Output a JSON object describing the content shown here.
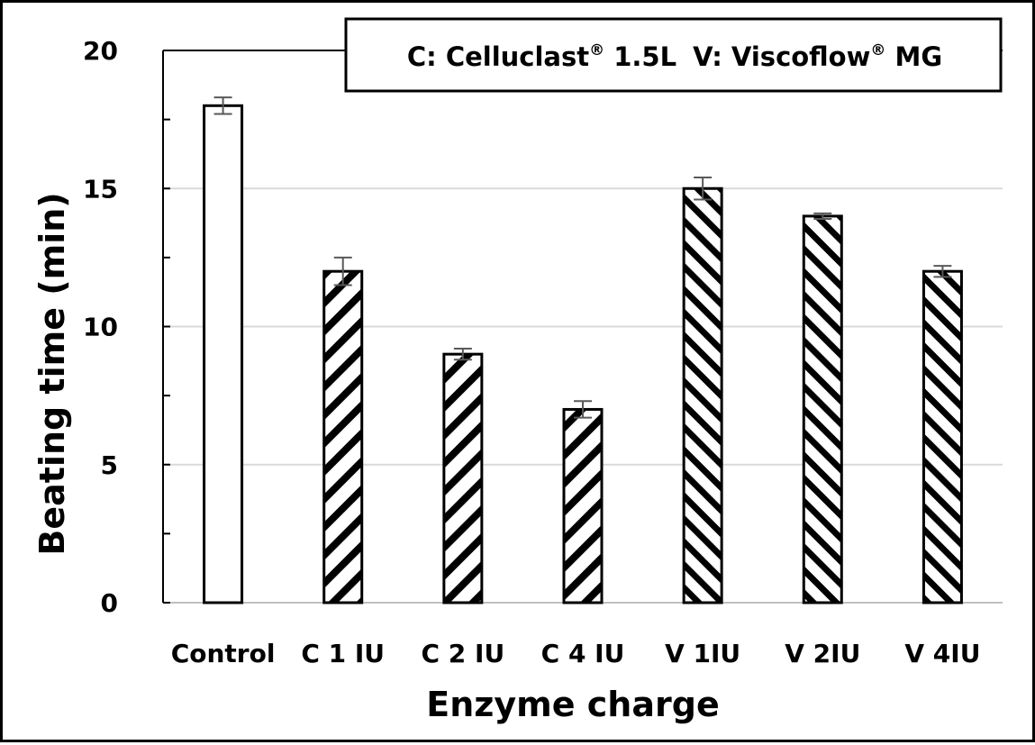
{
  "chart_data": {
    "type": "bar",
    "title": "",
    "xlabel": "Enzyme charge",
    "ylabel": "Beating time (min)",
    "ylim": [
      0,
      20
    ],
    "yticks": [
      0,
      5,
      10,
      15,
      20
    ],
    "yticks_minor": [
      2.5,
      7.5,
      12.5,
      17.5
    ],
    "grid": true,
    "categories": [
      "Control",
      "C 1 IU",
      "C 2 IU",
      "C 4 IU",
      "V 1IU",
      "V 2IU",
      "V 4IU"
    ],
    "values": [
      18,
      12,
      9,
      7,
      15,
      14,
      12
    ],
    "errors": [
      0.3,
      0.5,
      0.2,
      0.3,
      0.4,
      0.1,
      0.2
    ],
    "fill_patterns": [
      "none",
      "hatch-forward",
      "hatch-forward",
      "hatch-forward",
      "hatch-back",
      "hatch-back",
      "hatch-back"
    ],
    "legend": {
      "placement": "top-right",
      "entries": [
        {
          "prefix": "C: Celluclast",
          "mark": "®",
          "suffix": " 1.5L"
        },
        {
          "prefix": "V: Viscoflow",
          "mark": "®",
          "suffix": " MG"
        }
      ]
    },
    "colors": {
      "bar_stroke": "#000000",
      "hatch": "#000000",
      "grid": "#d9d9d9",
      "error_bar": "#595959"
    }
  }
}
